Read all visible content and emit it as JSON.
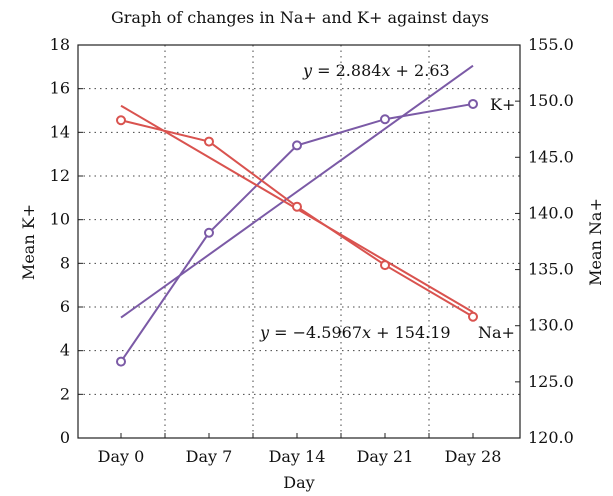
{
  "chart_data": {
    "type": "line",
    "title": "Graph of changes in Na+ and K+ against days",
    "xlabel": "Day",
    "categories": [
      "Day 0",
      "Day 7",
      "Day 14",
      "Day 21",
      "Day 28"
    ],
    "x_positions": [
      0,
      7,
      14,
      21,
      28
    ],
    "y_left": {
      "label": "Mean K+",
      "range": [
        0,
        18
      ],
      "ticks": [
        0,
        2,
        4,
        6,
        8,
        10,
        12,
        14,
        16,
        18
      ]
    },
    "y_right": {
      "label": "Mean Na+",
      "range": [
        120.0,
        155.0
      ],
      "ticks": [
        "120.0",
        "125.0",
        "130.0",
        "135.0",
        "140.0",
        "145.0",
        "150.0",
        "155.0"
      ]
    },
    "grid": "dotted",
    "series": [
      {
        "name": "K+",
        "axis": "left",
        "color": "#7b5aa6",
        "x": [
          0,
          7,
          14,
          21,
          28
        ],
        "values": [
          3.5,
          9.4,
          13.4,
          14.6,
          15.3
        ],
        "trend": {
          "slope": 2.884,
          "intercept": 2.63,
          "label_prefix": "y",
          "label_x": "x",
          "label_rest": " + 2.63",
          "label_eq": " = 2.884"
        }
      },
      {
        "name": "Na+",
        "axis": "right",
        "color": "#d9534f",
        "x": [
          0,
          7,
          14,
          21,
          28
        ],
        "values": [
          148.3,
          146.4,
          140.6,
          135.4,
          130.8
        ],
        "trend": {
          "slope": -4.5967,
          "intercept": 154.19,
          "label_prefix": "y",
          "label_x": "x",
          "label_rest": " + 154.19",
          "label_eq": " = −4.5967"
        }
      }
    ]
  }
}
